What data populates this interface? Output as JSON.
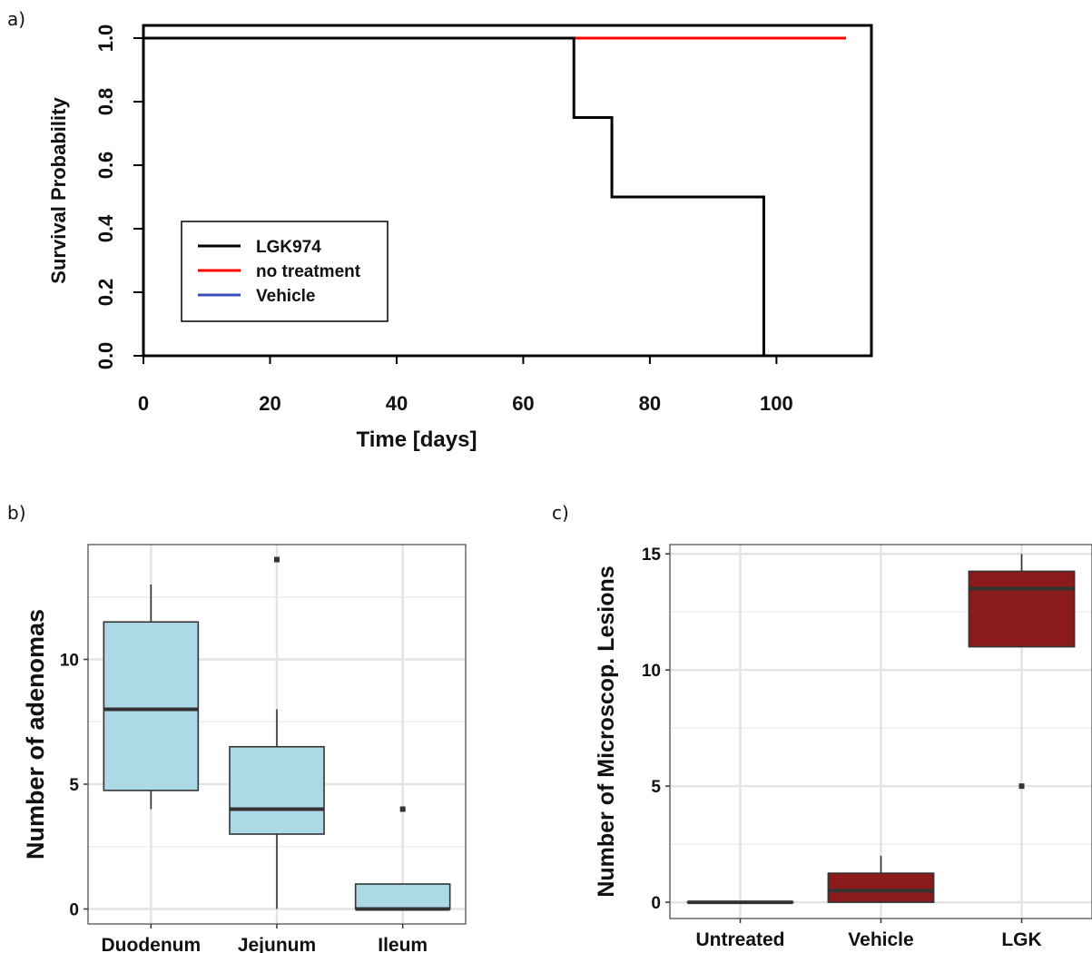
{
  "panel_labels": {
    "a": "a)",
    "b": "b)",
    "c": "c)"
  },
  "chart_data": [
    {
      "type": "line",
      "subtype": "kaplan-meier-step",
      "xlabel": "Time [days]",
      "ylabel": "Survival Probability",
      "xlim": [
        0,
        115
      ],
      "ylim": [
        0,
        1.04
      ],
      "xticks": [
        0,
        20,
        40,
        60,
        80,
        100
      ],
      "yticks": [
        0.0,
        0.2,
        0.4,
        0.6,
        0.8,
        1.0
      ],
      "xtick_labels": [
        "0",
        "20",
        "40",
        "60",
        "80",
        "100"
      ],
      "ytick_labels": [
        "0.0",
        "0.2",
        "0.4",
        "0.6",
        "0.8",
        "1.0"
      ],
      "grid": false,
      "legend": "bottom-left",
      "series": [
        {
          "name": "LGK974",
          "color": "#000000",
          "x": [
            0,
            68,
            68,
            74,
            74,
            98,
            98
          ],
          "y": [
            1.0,
            1.0,
            0.75,
            0.75,
            0.5,
            0.5,
            0.0
          ]
        },
        {
          "name": "no treatment",
          "color": "#ff0000",
          "x": [
            0,
            111
          ],
          "y": [
            1.0,
            1.0
          ]
        },
        {
          "name": "Vehicle",
          "color": "#3a4fb8",
          "x": [
            0,
            110
          ],
          "y": [
            1.0,
            1.0
          ]
        }
      ]
    },
    {
      "type": "box",
      "xlabel": "",
      "ylabel": "Number of adenomas",
      "ylim": [
        -0.6,
        14.6
      ],
      "yticks": [
        0,
        5,
        10
      ],
      "ytick_labels": [
        "0",
        "5",
        "10"
      ],
      "grid": true,
      "fill": "#add8e6",
      "categories": [
        "Duodenum",
        "Jejunum",
        "Ileum"
      ],
      "boxes": [
        {
          "min": 4,
          "q1": 4.75,
          "median": 8,
          "q3": 11.5,
          "max": 13,
          "outliers": []
        },
        {
          "min": 0,
          "q1": 3,
          "median": 4,
          "q3": 6.5,
          "max": 8,
          "outliers": [
            14
          ]
        },
        {
          "min": 0,
          "q1": 0,
          "median": 0,
          "q3": 1,
          "max": 1,
          "outliers": [
            4
          ]
        }
      ]
    },
    {
      "type": "box",
      "xlabel": "",
      "ylabel": "Number of Microscop. Lesions",
      "ylim": [
        -0.7,
        15.4
      ],
      "yticks": [
        0,
        5,
        10,
        15
      ],
      "ytick_labels": [
        "0",
        "5",
        "10",
        "15"
      ],
      "grid": true,
      "fill": "#8b1a1a",
      "categories": [
        "Untreated",
        "Vehicle",
        "LGK"
      ],
      "boxes": [
        {
          "min": 0,
          "q1": 0,
          "median": 0,
          "q3": 0,
          "max": 0,
          "outliers": []
        },
        {
          "min": 0,
          "q1": 0,
          "median": 0.5,
          "q3": 1.25,
          "max": 2,
          "outliers": []
        },
        {
          "min": 11,
          "q1": 11,
          "median": 13.5,
          "q3": 14.25,
          "max": 15,
          "outliers": [
            5
          ]
        }
      ]
    }
  ]
}
